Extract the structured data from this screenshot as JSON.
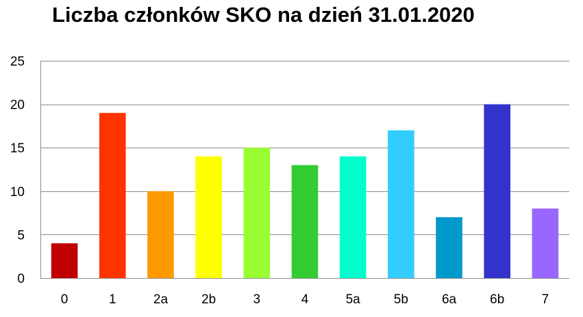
{
  "chart_data": {
    "type": "bar",
    "title": "Liczba członków SKO na dzień 31.01.2020",
    "xlabel": "",
    "ylabel": "",
    "categories": [
      "0",
      "1",
      "2a",
      "2b",
      "3",
      "4",
      "5a",
      "5b",
      "6a",
      "6b",
      "7"
    ],
    "values": [
      4,
      19,
      10,
      14,
      15,
      13,
      14,
      17,
      7,
      20,
      8
    ],
    "colors": [
      "#C00000",
      "#FF3300",
      "#FF9900",
      "#FFFF00",
      "#99FF33",
      "#33CC33",
      "#00FFCC",
      "#33CCFF",
      "#0099CC",
      "#3333CC",
      "#9966FF"
    ],
    "ylim": [
      0,
      25
    ],
    "yticks": [
      0,
      5,
      10,
      15,
      20,
      25
    ],
    "grid": true,
    "legend": "none"
  }
}
